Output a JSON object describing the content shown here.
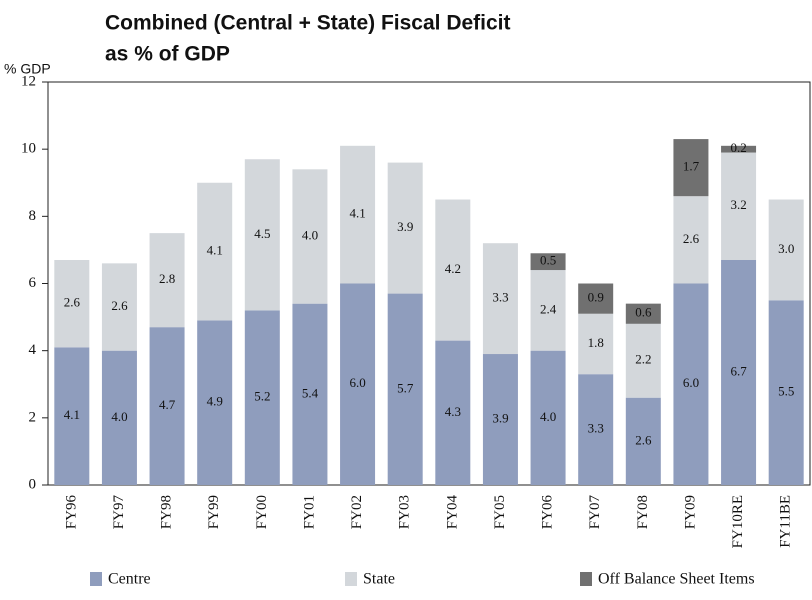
{
  "chart_data": {
    "type": "stacked_bar",
    "title": "Combined (Central + State) Fiscal Deficit",
    "subtitle": "as % of GDP",
    "y_label": "% GDP",
    "categories": [
      "FY96",
      "FY97",
      "FY98",
      "FY99",
      "FY00",
      "FY01",
      "FY02",
      "FY03",
      "FY04",
      "FY05",
      "FY06",
      "FY07",
      "FY08",
      "FY09",
      "FY10RE",
      "FY11BE"
    ],
    "series": [
      {
        "name": "Centre",
        "color": "#8f9dbd",
        "values": [
          4.1,
          4.0,
          4.7,
          4.9,
          5.2,
          5.4,
          6.0,
          5.7,
          4.3,
          3.9,
          4.0,
          3.3,
          2.6,
          6.0,
          6.7,
          5.5
        ],
        "value_labels": [
          "4.1",
          "4.0",
          "4.7",
          "4.9",
          "5.2",
          "5.4",
          "6.0",
          "5.7",
          "4.3",
          "3.9",
          "4.0",
          "3.3",
          "2.6",
          "6.0",
          "6.7",
          "5.5"
        ]
      },
      {
        "name": "State",
        "color": "#d3d7db",
        "values": [
          2.6,
          2.6,
          2.8,
          4.1,
          4.5,
          4.0,
          4.1,
          3.9,
          4.2,
          3.3,
          2.4,
          1.8,
          2.2,
          2.6,
          3.2,
          3.0
        ],
        "value_labels": [
          "2.6",
          "2.6",
          "2.8",
          "4.1",
          "4.5",
          "4.0",
          "4.1",
          "3.9",
          "4.2",
          "3.3",
          "2.4",
          "1.8",
          "2.2",
          "2.6",
          "3.2",
          "3.0"
        ]
      },
      {
        "name": "Off Balance Sheet Items",
        "color": "#707070",
        "values": [
          null,
          null,
          null,
          null,
          null,
          null,
          null,
          null,
          null,
          null,
          0.5,
          0.9,
          0.6,
          1.7,
          0.2,
          null
        ],
        "value_labels": [
          null,
          null,
          null,
          null,
          null,
          null,
          null,
          null,
          null,
          null,
          "0.5",
          "0.9",
          "0.6",
          "1.7",
          "0.2",
          null
        ]
      }
    ],
    "ylim": [
      0,
      12
    ],
    "yticks": [
      0,
      2,
      4,
      6,
      8,
      10,
      12
    ],
    "grid": false
  }
}
